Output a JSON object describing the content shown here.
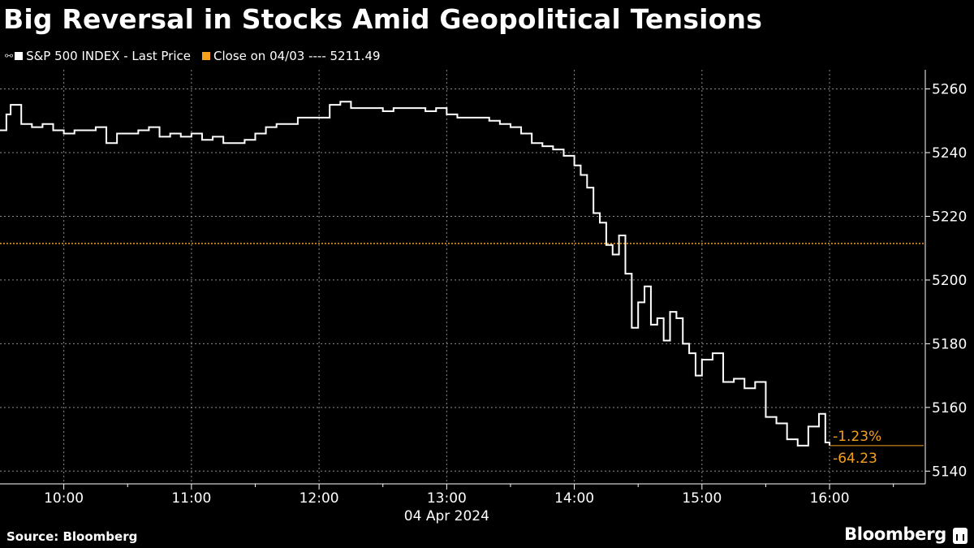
{
  "title": "Big Reversal in Stocks Amid Geopolitical Tensions",
  "legend": [
    {
      "label": "S&P 500 INDEX - Last Price",
      "color": "#ffffff"
    },
    {
      "label": "Close on 04/03 ---- 5211.49",
      "color": "#f7a01c"
    }
  ],
  "source": "Source: Bloomberg",
  "brand": "Bloomberg",
  "colors": {
    "background": "#000000",
    "price_line": "#ffffff",
    "reference": "#f7a01c",
    "grid": "#8a8a8a"
  },
  "chart_data": {
    "type": "line",
    "date_label": "04 Apr 2024",
    "xlabel": "",
    "ylabel": "",
    "x_ticks": [
      "10:00",
      "11:00",
      "12:00",
      "13:00",
      "14:00",
      "15:00",
      "16:00"
    ],
    "y_ticks": [
      5140,
      5160,
      5180,
      5200,
      5220,
      5240,
      5260
    ],
    "ylim": [
      5136,
      5266
    ],
    "xlim": [
      "09:30",
      "16:45"
    ],
    "grid": true,
    "legend_position": "top-left",
    "reference_line": {
      "name": "Close on 04/03",
      "value": 5211.49
    },
    "end_labels": {
      "pct_change": "-1.23%",
      "abs_change": "-64.23"
    },
    "series": [
      {
        "name": "S&P 500 INDEX - Last Price",
        "x": [
          "09:30",
          "09:33",
          "09:35",
          "09:40",
          "09:45",
          "09:50",
          "09:55",
          "10:00",
          "10:05",
          "10:10",
          "10:15",
          "10:20",
          "10:25",
          "10:30",
          "10:35",
          "10:40",
          "10:45",
          "10:50",
          "10:55",
          "11:00",
          "11:05",
          "11:10",
          "11:15",
          "11:20",
          "11:25",
          "11:30",
          "11:35",
          "11:40",
          "11:45",
          "11:50",
          "11:55",
          "12:00",
          "12:05",
          "12:10",
          "12:15",
          "12:20",
          "12:25",
          "12:30",
          "12:35",
          "12:40",
          "12:45",
          "12:50",
          "12:55",
          "13:00",
          "13:05",
          "13:10",
          "13:15",
          "13:20",
          "13:25",
          "13:30",
          "13:35",
          "13:40",
          "13:45",
          "13:50",
          "13:55",
          "14:00",
          "14:03",
          "14:06",
          "14:09",
          "14:12",
          "14:15",
          "14:18",
          "14:21",
          "14:24",
          "14:27",
          "14:30",
          "14:33",
          "14:36",
          "14:39",
          "14:42",
          "14:45",
          "14:48",
          "14:51",
          "14:54",
          "14:57",
          "15:00",
          "15:05",
          "15:10",
          "15:15",
          "15:20",
          "15:25",
          "15:30",
          "15:35",
          "15:40",
          "15:45",
          "15:50",
          "15:55",
          "15:58",
          "16:00"
        ],
        "y": [
          5247,
          5252,
          5255,
          5249,
          5248,
          5249,
          5247,
          5246,
          5247,
          5247,
          5248,
          5243,
          5246,
          5246,
          5247,
          5248,
          5245,
          5246,
          5245,
          5246,
          5244,
          5245,
          5243,
          5243,
          5244,
          5246,
          5248,
          5249,
          5249,
          5251,
          5251,
          5251,
          5255,
          5256,
          5254,
          5254,
          5254,
          5253,
          5254,
          5254,
          5254,
          5253,
          5254,
          5252,
          5251,
          5251,
          5251,
          5250,
          5249,
          5248,
          5246,
          5243,
          5242,
          5241,
          5239,
          5236,
          5233,
          5229,
          5221,
          5218,
          5211,
          5208,
          5214,
          5202,
          5185,
          5193,
          5198,
          5186,
          5188,
          5181,
          5190,
          5188,
          5180,
          5177,
          5170,
          5175,
          5177,
          5168,
          5169,
          5166,
          5168,
          5157,
          5155,
          5150,
          5148,
          5154,
          5158,
          5149,
          5148
        ]
      }
    ]
  }
}
